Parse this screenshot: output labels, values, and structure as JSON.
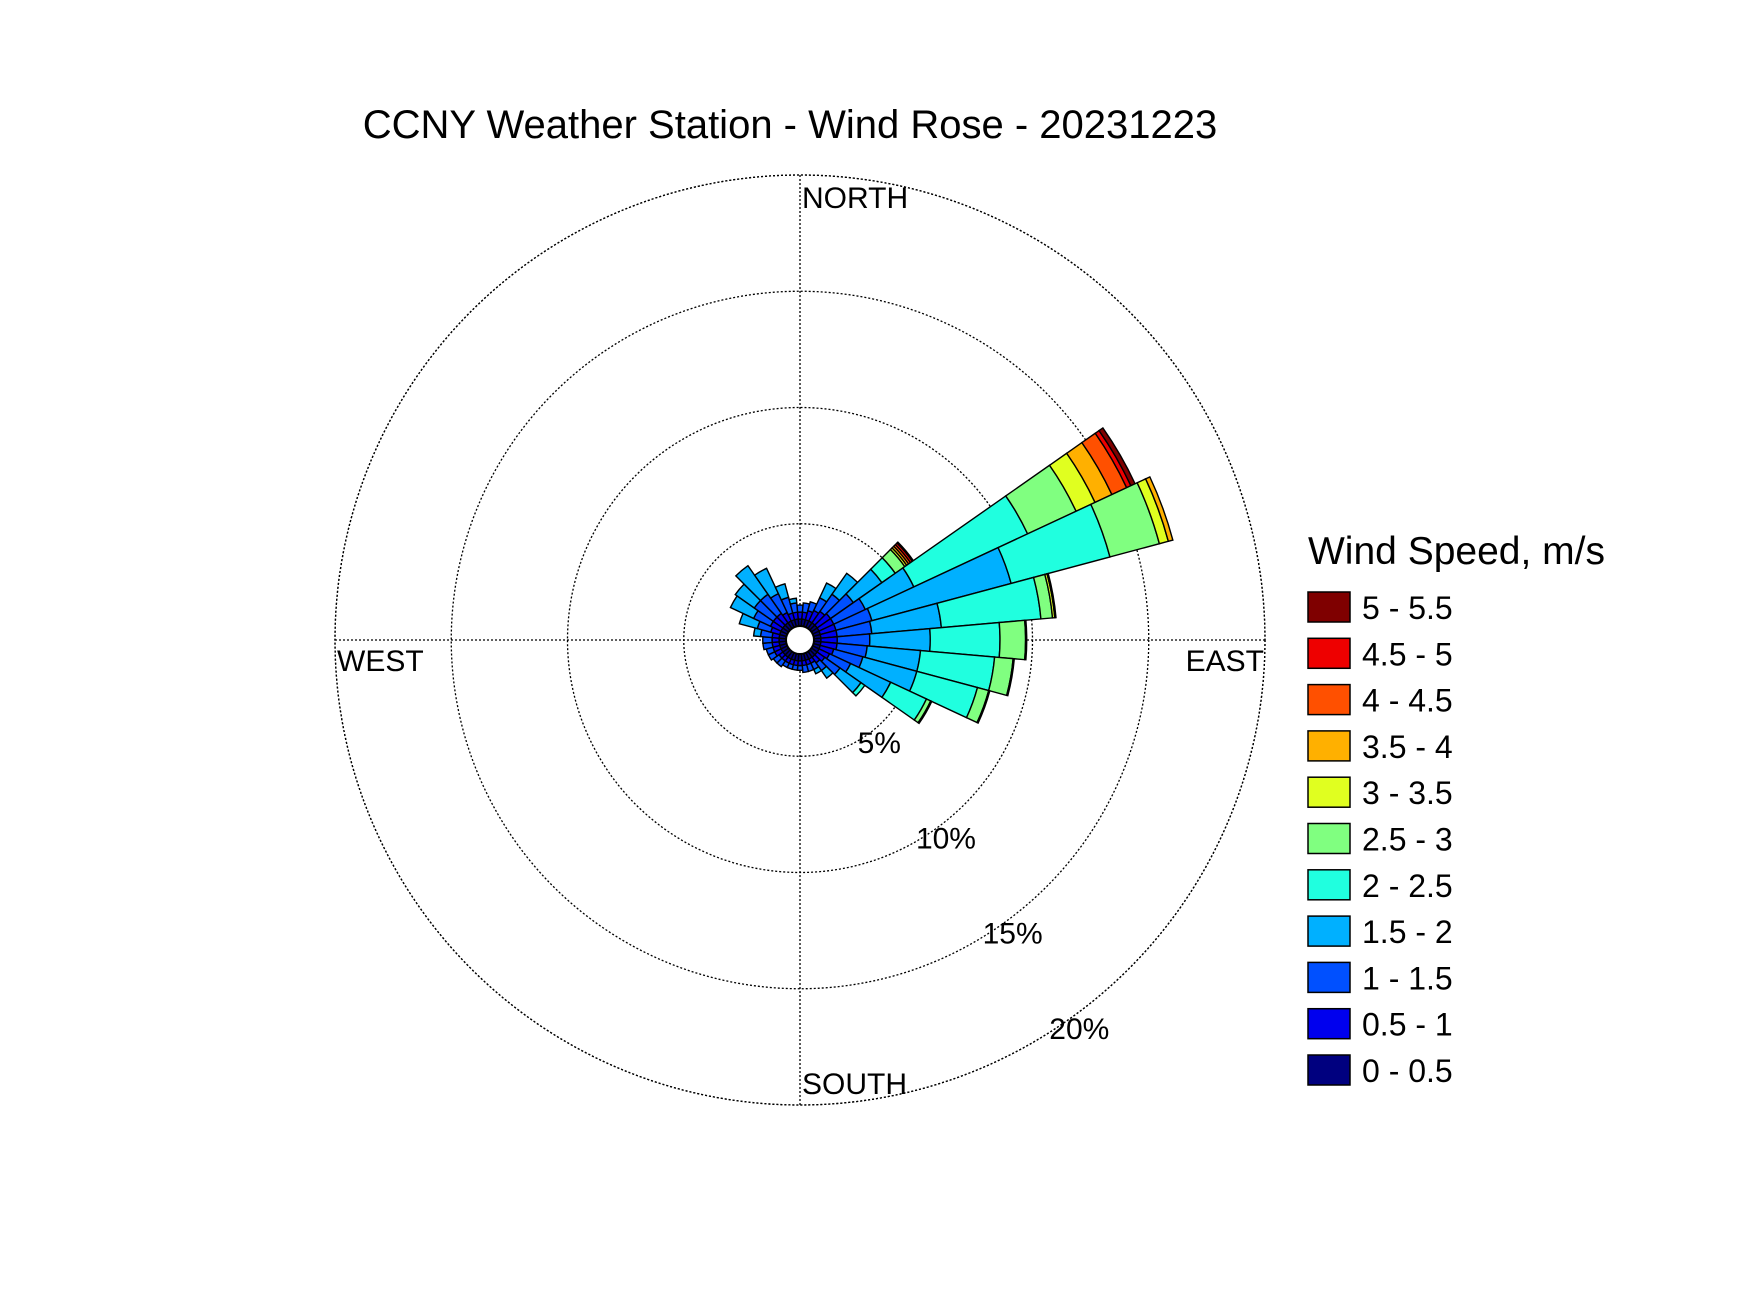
{
  "chart_data": {
    "type": "wind-rose",
    "title": "CCNY Weather Station - Wind Rose - 20231223",
    "legend_title": "Wind Speed, m/s",
    "legend_placement": "right",
    "direction_labels": {
      "north": "NORTH",
      "south": "SOUTH",
      "east": "EAST",
      "west": "WEST"
    },
    "radial_ticks": [
      {
        "value": 5,
        "label": "5%"
      },
      {
        "value": 10,
        "label": "10%"
      },
      {
        "value": 15,
        "label": "15%"
      },
      {
        "value": 20,
        "label": "20%"
      }
    ],
    "radial_max": 20,
    "grid": true,
    "speed_bins": [
      {
        "label": "0 - 0.5",
        "color": "#00007f"
      },
      {
        "label": "0.5 - 1",
        "color": "#0000ee"
      },
      {
        "label": "1 - 1.5",
        "color": "#0050ff"
      },
      {
        "label": "1.5 - 2",
        "color": "#00b0ff"
      },
      {
        "label": "2 - 2.5",
        "color": "#20ffdf"
      },
      {
        "label": "2.5 - 3",
        "color": "#80ff80"
      },
      {
        "label": "3 - 3.5",
        "color": "#e0ff20"
      },
      {
        "label": "3.5 - 4",
        "color": "#ffb000"
      },
      {
        "label": "4 - 4.5",
        "color": "#ff5000"
      },
      {
        "label": "4.5 - 5",
        "color": "#ee0000"
      },
      {
        "label": "5 - 5.5",
        "color": "#7f0000"
      }
    ],
    "sectors_note": "cumulative frequency (%) at top of each speed bin, 36 sectors of 10 degrees",
    "sectors": [
      {
        "direction": 0,
        "cumulative": [
          0.3,
          0.6,
          0.9
        ]
      },
      {
        "direction": 10,
        "cumulative": [
          0.3,
          0.6,
          1.0
        ]
      },
      {
        "direction": 20,
        "cumulative": [
          0.3,
          0.7,
          1.1
        ]
      },
      {
        "direction": 30,
        "cumulative": [
          0.3,
          0.8,
          1.4,
          2.1
        ]
      },
      {
        "direction": 40,
        "cumulative": [
          0.3,
          0.9,
          1.8,
          2.9
        ]
      },
      {
        "direction": 50,
        "cumulative": [
          0.3,
          1.0,
          2.2,
          3.7,
          4.4,
          4.9,
          5.0,
          5.1,
          5.2,
          5.3,
          5.35
        ]
      },
      {
        "direction": 60,
        "cumulative": [
          0.3,
          1.0,
          2.5,
          4.8,
          10.2,
          12.5,
          13.4,
          14.2,
          14.9,
          15.1,
          15.3
        ]
      },
      {
        "direction": 70,
        "cumulative": [
          0.3,
          1.0,
          2.6,
          8.8,
          13.2,
          15.4,
          15.8,
          16.0
        ]
      },
      {
        "direction": 80,
        "cumulative": [
          0.3,
          1.0,
          2.5,
          5.5,
          9.8,
          10.3,
          10.4,
          10.45
        ]
      },
      {
        "direction": 90,
        "cumulative": [
          0.3,
          1.0,
          2.4,
          5.0,
          8.0,
          9.1,
          9.15
        ]
      },
      {
        "direction": 100,
        "cumulative": [
          0.3,
          1.0,
          2.3,
          4.6,
          7.8,
          8.6,
          8.65
        ]
      },
      {
        "direction": 110,
        "cumulative": [
          0.3,
          0.9,
          2.2,
          4.6,
          7.3,
          7.8,
          7.85
        ]
      },
      {
        "direction": 120,
        "cumulative": [
          0.3,
          0.8,
          1.8,
          3.7,
          5.4,
          5.6,
          5.65
        ]
      },
      {
        "direction": 130,
        "cumulative": [
          0.3,
          0.7,
          1.5,
          2.6,
          2.8
        ]
      },
      {
        "direction": 140,
        "cumulative": [
          0.3,
          0.6,
          1.0,
          1.4
        ]
      },
      {
        "direction": 150,
        "cumulative": [
          0.3,
          0.5,
          0.8,
          1.0
        ]
      },
      {
        "direction": 160,
        "cumulative": [
          0.3,
          0.5,
          0.8
        ]
      },
      {
        "direction": 170,
        "cumulative": [
          0.3,
          0.5,
          0.8
        ]
      },
      {
        "direction": 180,
        "cumulative": [
          0.3,
          0.5,
          0.7
        ]
      },
      {
        "direction": 190,
        "cumulative": [
          0.3,
          0.5,
          0.7
        ]
      },
      {
        "direction": 200,
        "cumulative": [
          0.3,
          0.5,
          0.7
        ]
      },
      {
        "direction": 210,
        "cumulative": [
          0.3,
          0.5,
          0.7
        ]
      },
      {
        "direction": 220,
        "cumulative": [
          0.3,
          0.5,
          0.8
        ]
      },
      {
        "direction": 230,
        "cumulative": [
          0.3,
          0.5,
          0.8
        ]
      },
      {
        "direction": 240,
        "cumulative": [
          0.3,
          0.6,
          0.9
        ]
      },
      {
        "direction": 250,
        "cumulative": [
          0.3,
          0.6,
          0.9
        ]
      },
      {
        "direction": 260,
        "cumulative": [
          0.3,
          0.6,
          1.0
        ]
      },
      {
        "direction": 270,
        "cumulative": [
          0.3,
          0.6,
          1.0
        ]
      },
      {
        "direction": 280,
        "cumulative": [
          0.3,
          0.6,
          1.1,
          1.4
        ]
      },
      {
        "direction": 290,
        "cumulative": [
          0.3,
          0.7,
          1.3,
          2.1
        ]
      },
      {
        "direction": 300,
        "cumulative": [
          0.3,
          0.8,
          1.6,
          2.7
        ]
      },
      {
        "direction": 310,
        "cumulative": [
          0.3,
          0.8,
          1.8,
          2.8
        ]
      },
      {
        "direction": 320,
        "cumulative": [
          0.3,
          0.8,
          1.8,
          3.3
        ]
      },
      {
        "direction": 330,
        "cumulative": [
          0.3,
          0.7,
          1.6,
          2.8
        ]
      },
      {
        "direction": 340,
        "cumulative": [
          0.3,
          0.6,
          1.3,
          1.9
        ]
      },
      {
        "direction": 350,
        "cumulative": [
          0.3,
          0.6,
          1.0,
          1.2
        ]
      }
    ]
  }
}
